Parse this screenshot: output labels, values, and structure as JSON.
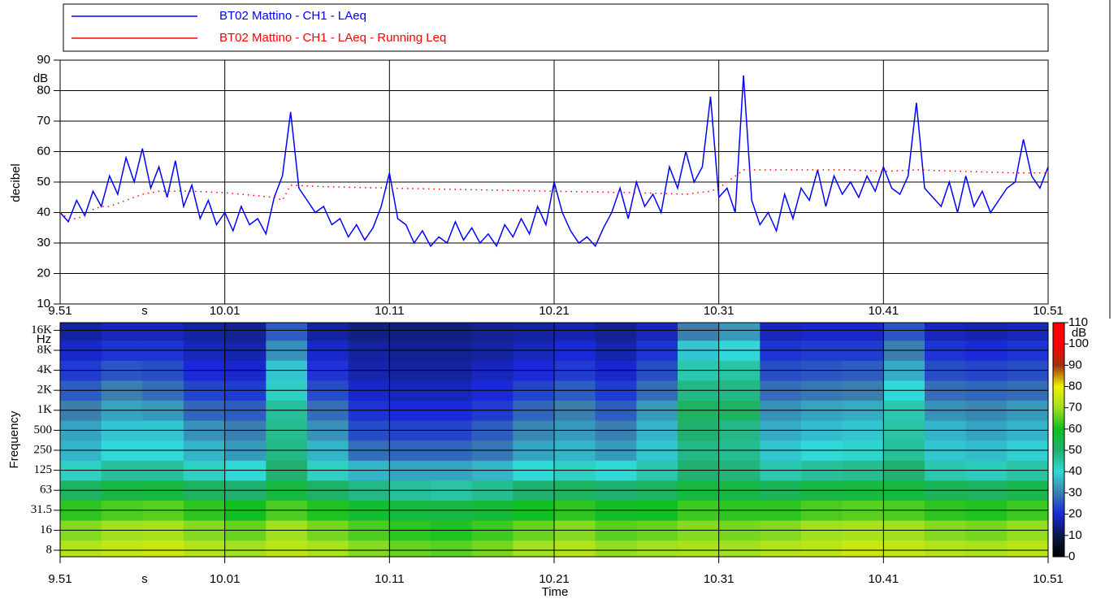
{
  "chart_data": [
    {
      "type": "line",
      "ylabel": "decibel",
      "y_unit": "dB",
      "x_unit": "s",
      "legend": "top",
      "grid": true,
      "xlim": [
        0,
        60
      ],
      "xticks": [
        {
          "value": 0,
          "label": "9.51"
        },
        {
          "value": 10,
          "label": "10.01"
        },
        {
          "value": 20,
          "label": "10.11"
        },
        {
          "value": 30,
          "label": "10.21"
        },
        {
          "value": 40,
          "label": "10.31"
        },
        {
          "value": 50,
          "label": "10.41"
        },
        {
          "value": 60,
          "label": "10.51"
        }
      ],
      "ylim": [
        10,
        90
      ],
      "yticks": [
        10,
        20,
        30,
        40,
        50,
        60,
        70,
        80,
        90
      ],
      "x": [
        0,
        0.5,
        1,
        1.5,
        2,
        2.5,
        3,
        3.5,
        4,
        4.5,
        5,
        5.5,
        6,
        6.5,
        7,
        7.5,
        8,
        8.5,
        9,
        9.5,
        10,
        10.5,
        11,
        11.5,
        12,
        12.5,
        13,
        13.5,
        14,
        14.5,
        15,
        15.5,
        16,
        16.5,
        17,
        17.5,
        18,
        18.5,
        19,
        19.5,
        20,
        20.5,
        21,
        21.5,
        22,
        22.5,
        23,
        23.5,
        24,
        24.5,
        25,
        25.5,
        26,
        26.5,
        27,
        27.5,
        28,
        28.5,
        29,
        29.5,
        30,
        30.5,
        31,
        31.5,
        32,
        32.5,
        33,
        33.5,
        34,
        34.5,
        35,
        35.5,
        36,
        36.5,
        37,
        37.5,
        38,
        38.5,
        39,
        39.5,
        40,
        40.5,
        41,
        41.5,
        42,
        42.5,
        43,
        43.5,
        44,
        44.5,
        45,
        45.5,
        46,
        46.5,
        47,
        47.5,
        48,
        48.5,
        49,
        49.5,
        50,
        50.5,
        51,
        51.5,
        52,
        52.5,
        53,
        53.5,
        54,
        54.5,
        55,
        55.5,
        56,
        56.5,
        57,
        57.5,
        58,
        58.5,
        59,
        59.5,
        60
      ],
      "series": [
        {
          "name": "BT02 Mattino - CH1 - LAeq",
          "color": "#0000ff",
          "style": "solid",
          "values": [
            40,
            37,
            44,
            39,
            47,
            42,
            52,
            46,
            58,
            50,
            61,
            48,
            55,
            45,
            57,
            42,
            49,
            38,
            44,
            36,
            40,
            34,
            42,
            36,
            38,
            33,
            45,
            52,
            73,
            48,
            44,
            40,
            42,
            36,
            38,
            32,
            36,
            31,
            35,
            42,
            53,
            38,
            36,
            30,
            34,
            29,
            32,
            30,
            37,
            31,
            35,
            30,
            33,
            29,
            36,
            32,
            38,
            33,
            42,
            36,
            50,
            40,
            34,
            30,
            32,
            29,
            35,
            40,
            48,
            38,
            50,
            42,
            46,
            40,
            55,
            48,
            60,
            50,
            55,
            78,
            45,
            48,
            40,
            85,
            44,
            36,
            40,
            34,
            46,
            38,
            48,
            44,
            54,
            42,
            52,
            46,
            50,
            45,
            52,
            47,
            55,
            48,
            46,
            52,
            76,
            48,
            45,
            42,
            50,
            40,
            52,
            42,
            47,
            40,
            44,
            48,
            50,
            64,
            52,
            48,
            55
          ]
        },
        {
          "name": "BT02 Mattino - CH1 - LAeq - Running Leq",
          "color": "#ff0000",
          "style": "dotted",
          "x": [
            0,
            0.5,
            1,
            1.5,
            2,
            2.5,
            3,
            4,
            5,
            6,
            8,
            10,
            12,
            13,
            13.5,
            14,
            16,
            20,
            25,
            30,
            35,
            38,
            39.5,
            40,
            41.5,
            42,
            45,
            48,
            50,
            52,
            55,
            58,
            60
          ],
          "values": [
            40,
            38,
            38,
            39,
            41,
            42,
            42,
            44,
            46,
            47,
            47,
            46.5,
            45.5,
            45,
            44,
            49,
            48.5,
            48,
            47.5,
            47,
            46.5,
            46,
            47,
            48,
            54,
            54,
            54,
            54,
            53.5,
            54,
            53.5,
            53,
            53
          ]
        }
      ]
    },
    {
      "type": "heatmap",
      "xlabel": "Time",
      "ylabel": "Frequency",
      "x_unit": "s",
      "y_unit": "Hz",
      "grid": true,
      "xlim": [
        0,
        60
      ],
      "xticks": [
        {
          "value": 0,
          "label": "9.51"
        },
        {
          "value": 10,
          "label": "10.01"
        },
        {
          "value": 20,
          "label": "10.11"
        },
        {
          "value": 30,
          "label": "10.21"
        },
        {
          "value": 40,
          "label": "10.31"
        },
        {
          "value": 50,
          "label": "10.41"
        },
        {
          "value": 60,
          "label": "10.51"
        }
      ],
      "categories": [
        "8",
        "16",
        "31.5",
        "63",
        "125",
        "250",
        "500",
        "1K",
        "2K",
        "4K",
        "8K",
        "16K"
      ],
      "z": [
        [
          72,
          74,
          75,
          72,
          70,
          73,
          71,
          68,
          66,
          65,
          67,
          70,
          72,
          69,
          70,
          71,
          70,
          72,
          73,
          75,
          74,
          72,
          71,
          73
        ],
        [
          68,
          70,
          71,
          68,
          66,
          70,
          67,
          64,
          62,
          61,
          63,
          66,
          68,
          65,
          66,
          68,
          67,
          68,
          70,
          71,
          70,
          68,
          67,
          69
        ],
        [
          62,
          64,
          65,
          62,
          60,
          64,
          61,
          58,
          56,
          55,
          57,
          60,
          62,
          59,
          60,
          63,
          62,
          62,
          64,
          65,
          64,
          62,
          61,
          63
        ],
        [
          52,
          55,
          56,
          52,
          50,
          56,
          51,
          48,
          46,
          45,
          47,
          50,
          52,
          50,
          52,
          56,
          55,
          53,
          55,
          56,
          56,
          53,
          52,
          54
        ],
        [
          42,
          46,
          46,
          42,
          40,
          50,
          42,
          36,
          34,
          34,
          36,
          40,
          42,
          40,
          44,
          50,
          49,
          44,
          46,
          47,
          50,
          44,
          43,
          45
        ],
        [
          36,
          40,
          40,
          36,
          33,
          48,
          36,
          28,
          27,
          27,
          29,
          34,
          36,
          33,
          38,
          48,
          47,
          38,
          40,
          41,
          46,
          38,
          37,
          39
        ],
        [
          34,
          38,
          38,
          32,
          30,
          47,
          32,
          24,
          23,
          23,
          26,
          31,
          33,
          30,
          36,
          50,
          48,
          35,
          37,
          38,
          45,
          36,
          34,
          36
        ],
        [
          30,
          34,
          33,
          27,
          26,
          46,
          28,
          21,
          20,
          20,
          22,
          27,
          30,
          26,
          33,
          52,
          52,
          32,
          34,
          35,
          44,
          32,
          31,
          33
        ],
        [
          26,
          30,
          28,
          23,
          22,
          42,
          24,
          19,
          18,
          18,
          20,
          23,
          26,
          22,
          28,
          48,
          48,
          28,
          29,
          30,
          40,
          28,
          27,
          28
        ],
        [
          22,
          25,
          24,
          20,
          19,
          38,
          21,
          17,
          16,
          16,
          18,
          20,
          22,
          19,
          24,
          44,
          45,
          24,
          25,
          26,
          35,
          24,
          23,
          24
        ],
        [
          19,
          21,
          21,
          18,
          17,
          32,
          19,
          16,
          15,
          15,
          16,
          18,
          20,
          17,
          21,
          38,
          40,
          21,
          22,
          22,
          30,
          21,
          20,
          21
        ],
        [
          16,
          18,
          18,
          16,
          15,
          26,
          16,
          14,
          14,
          14,
          15,
          16,
          17,
          15,
          18,
          30,
          33,
          18,
          19,
          19,
          25,
          18,
          17,
          18
        ]
      ],
      "colorbar": {
        "unit": "dB",
        "ticks": [
          0,
          10,
          20,
          30,
          40,
          50,
          60,
          70,
          80,
          90,
          100,
          110
        ],
        "colors": [
          "#000000",
          "#0a1a4a",
          "#1a2ad8",
          "#3a7fb0",
          "#30d8d8",
          "#20b070",
          "#10c020",
          "#a0e020",
          "#f0f000",
          "#a03010",
          "#ff0000",
          "#ff0000"
        ]
      }
    }
  ]
}
